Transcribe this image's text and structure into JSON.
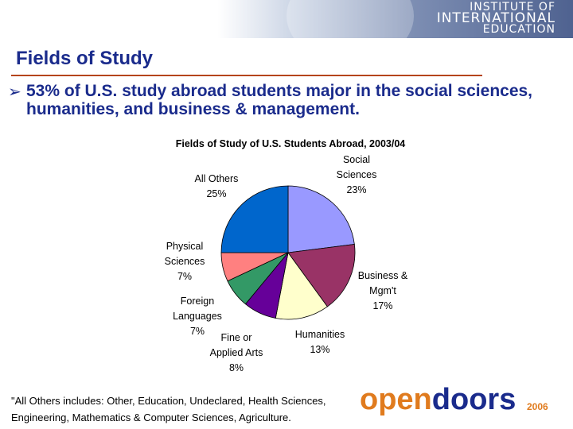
{
  "header": {
    "logo_lines": [
      "INSTITUTE OF",
      "INTERNATIONAL",
      "EDUCATION"
    ]
  },
  "slide": {
    "title": "Fields of Study",
    "bullet": "53% of U.S. study abroad students major in the social sciences, humanities, and business & management."
  },
  "chart_data": {
    "type": "pie",
    "title": "Fields of Study of U.S. Students Abroad, 2003/04",
    "slices": [
      {
        "label_lines": [
          "Social",
          "Sciences",
          "23%"
        ],
        "value": 23,
        "color": "#9999ff"
      },
      {
        "label_lines": [
          "Business &",
          "Mgm't",
          "17%"
        ],
        "value": 17,
        "color": "#993366"
      },
      {
        "label_lines": [
          "Humanities",
          "13%"
        ],
        "value": 13,
        "color": "#ffffcc"
      },
      {
        "label_lines": [
          "Fine or",
          "Applied Arts",
          "8%"
        ],
        "value": 8,
        "color": "#660099"
      },
      {
        "label_lines": [
          "Foreign",
          "Languages",
          "7%"
        ],
        "value": 7,
        "color": "#339966"
      },
      {
        "label_lines": [
          "Physical",
          "Sciences",
          "7%"
        ],
        "value": 7,
        "color": "#ff8080"
      },
      {
        "label_lines": [
          "All Others",
          "25%"
        ],
        "value": 25,
        "color": "#0066cc"
      }
    ]
  },
  "footnote": {
    "line1": "\"All Others includes: Other, Education, Undeclared, Health Sciences,",
    "line2": "Engineering, Mathematics & Computer Sciences, Agriculture."
  },
  "branding": {
    "open": "open",
    "doors": "doors",
    "year": "2006"
  }
}
